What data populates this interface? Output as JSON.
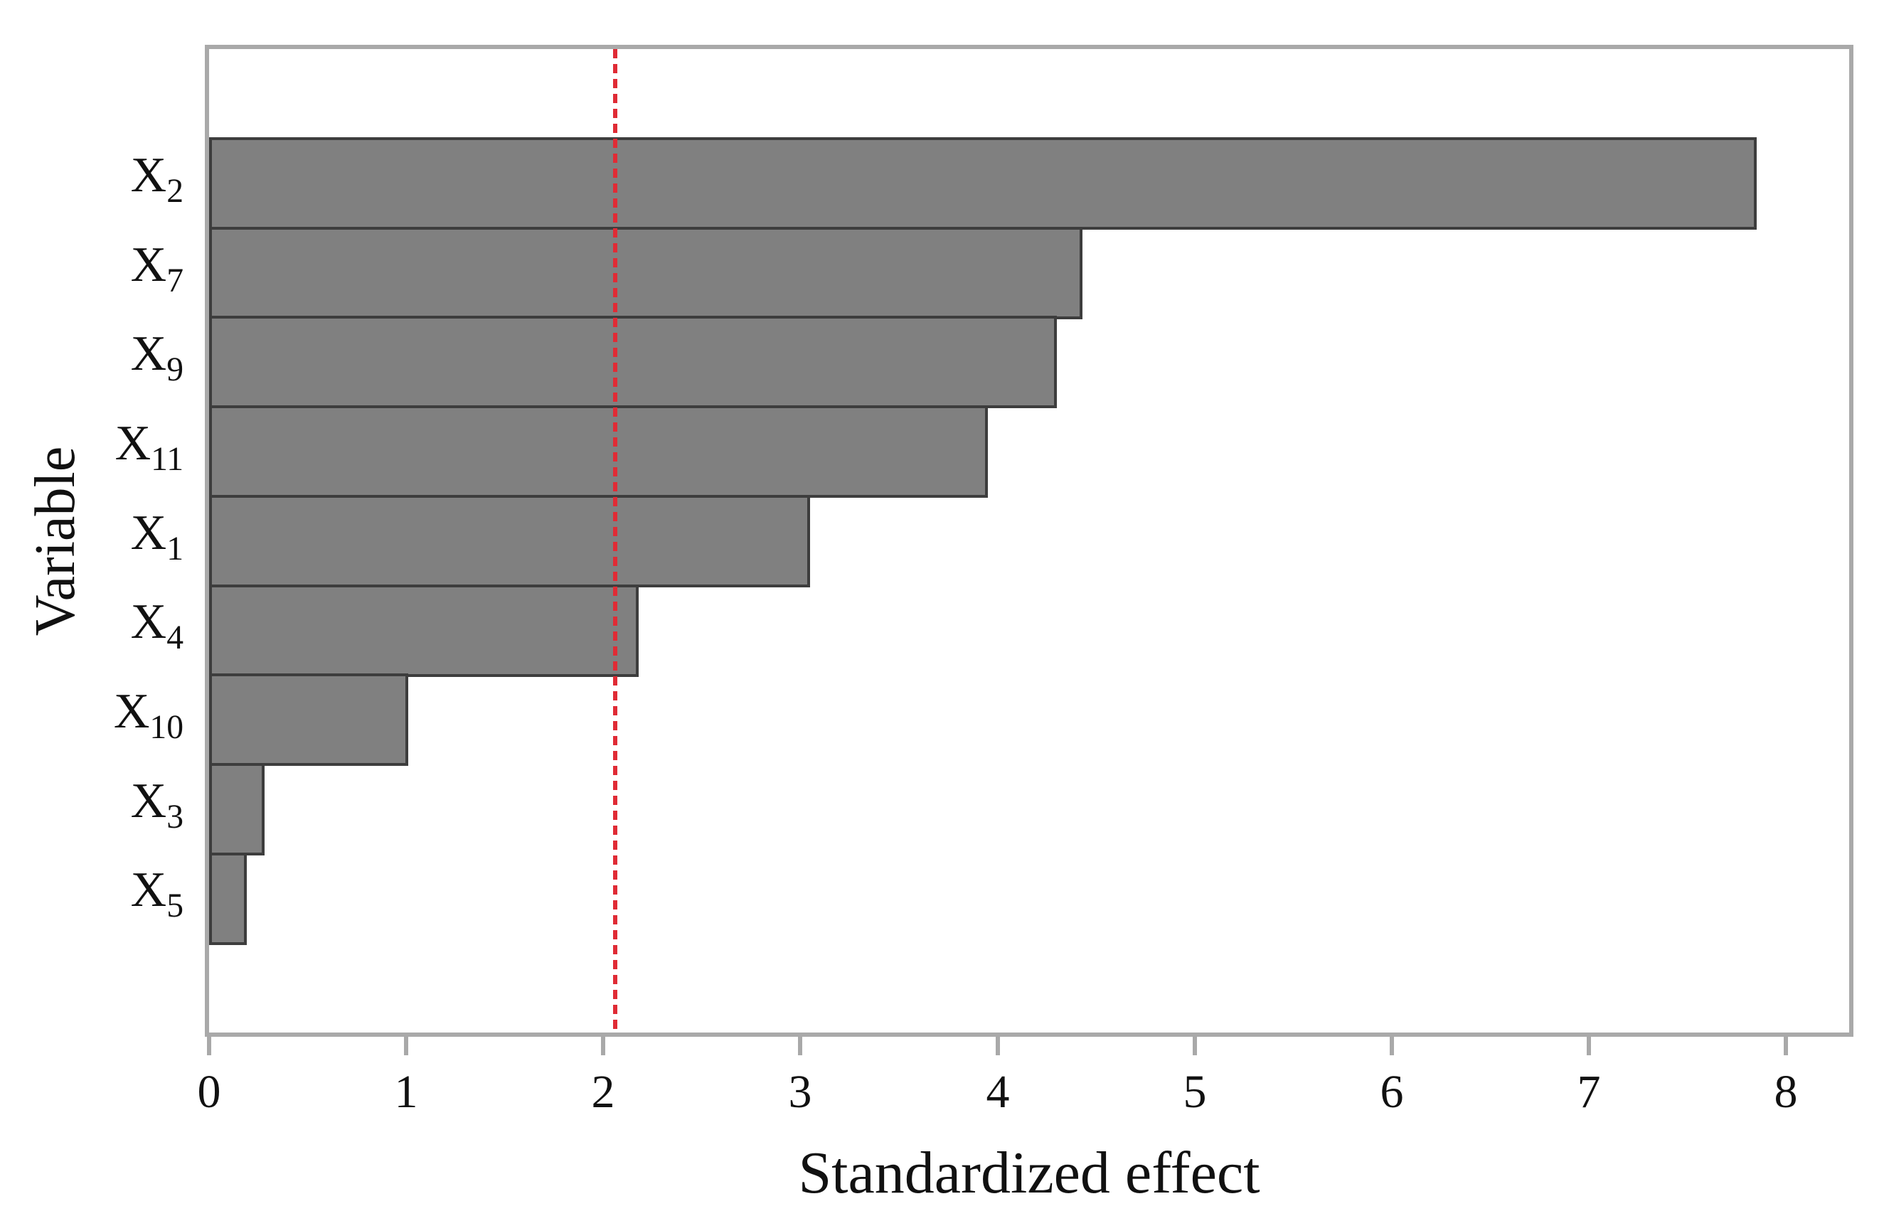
{
  "chart_data": {
    "type": "bar",
    "orientation": "horizontal",
    "title": "",
    "xlabel": "Standardized effect",
    "ylabel": "Variable",
    "categories": [
      "X2",
      "X7",
      "X9",
      "X11",
      "X1",
      "X4",
      "X10",
      "X3",
      "X5"
    ],
    "category_labels": [
      {
        "base": "X",
        "sub": "2"
      },
      {
        "base": "X",
        "sub": "7"
      },
      {
        "base": "X",
        "sub": "9"
      },
      {
        "base": "X",
        "sub": "11"
      },
      {
        "base": "X",
        "sub": "1"
      },
      {
        "base": "X",
        "sub": "4"
      },
      {
        "base": "X",
        "sub": "10"
      },
      {
        "base": "X",
        "sub": "3"
      },
      {
        "base": "X",
        "sub": "5"
      }
    ],
    "values": [
      7.85,
      4.43,
      4.3,
      3.95,
      3.05,
      2.18,
      1.01,
      0.28,
      0.19
    ],
    "x_ticks": [
      "0",
      "1",
      "2",
      "3",
      "4",
      "5",
      "6",
      "7",
      "8"
    ],
    "xlim": [
      0,
      8.32
    ],
    "reference_line": {
      "value": 2.06,
      "style": "dashed"
    },
    "grid": false,
    "legend": false,
    "colors": {
      "bar_fill": "#808080",
      "bar_border": "#3d3d3d",
      "frame": "#a9a9a9",
      "reference_line": "#e02b35",
      "text": "#111111"
    }
  }
}
